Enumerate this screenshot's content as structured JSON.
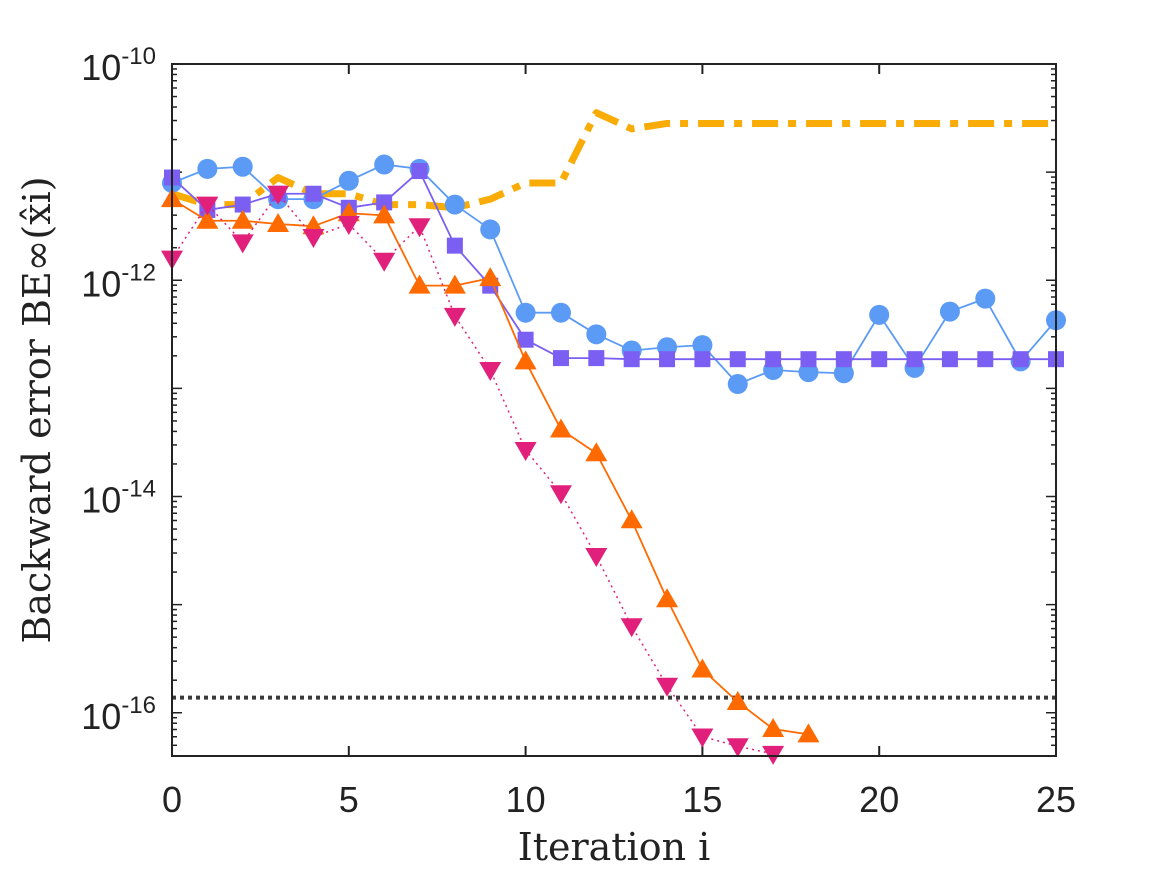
{
  "chart_data": {
    "type": "line",
    "title": "",
    "xlabel": "Iteration i",
    "ylabel": "Backward error BE∞(x̂i)",
    "xlim": [
      0,
      25
    ],
    "ylim_log10": [
      -16.4,
      -10
    ],
    "yscale": "log",
    "x_ticks": [
      "0",
      "5",
      "10",
      "15",
      "20",
      "25"
    ],
    "y_ticks": [
      {
        "base": "10",
        "exp": "-10"
      },
      {
        "base": "10",
        "exp": "-12"
      },
      {
        "base": "10",
        "exp": "-14"
      },
      {
        "base": "10",
        "exp": "-16"
      }
    ],
    "reference_line": {
      "log10": -15.86,
      "style": "dotted",
      "color": "#3a3a3a"
    },
    "series": [
      {
        "name": "dashed-yellow",
        "color": "#f9ac06",
        "marker": "none",
        "line": "dashdot",
        "x": [
          0,
          1,
          2,
          3,
          4,
          5,
          6,
          7,
          8,
          9,
          10,
          11,
          12,
          13,
          14,
          15,
          16,
          17,
          18,
          19,
          20,
          21,
          22,
          23,
          24,
          25
        ],
        "log10y": [
          -11.2,
          -11.3,
          -11.3,
          -11.05,
          -11.2,
          -11.2,
          -11.3,
          -11.3,
          -11.33,
          -11.25,
          -11.1,
          -11.1,
          -10.45,
          -10.6,
          -10.55,
          -10.55,
          -10.55,
          -10.55,
          -10.55,
          -10.55,
          -10.55,
          -10.55,
          -10.55,
          -10.55,
          -10.55,
          -10.55
        ]
      },
      {
        "name": "circles",
        "color": "#5b9bf5",
        "marker": "circle",
        "line": "solid",
        "x": [
          0,
          1,
          2,
          3,
          4,
          5,
          6,
          7,
          8,
          9,
          10,
          11,
          12,
          13,
          14,
          15,
          16,
          17,
          18,
          19,
          20,
          21,
          22,
          23,
          24,
          25
        ],
        "log10y": [
          -11.1,
          -10.97,
          -10.95,
          -11.25,
          -11.25,
          -11.08,
          -10.93,
          -10.97,
          -11.3,
          -11.53,
          -12.3,
          -12.3,
          -12.5,
          -12.65,
          -12.62,
          -12.6,
          -12.96,
          -12.83,
          -12.85,
          -12.86,
          -12.32,
          -12.81,
          -12.29,
          -12.17,
          -12.75,
          -12.37
        ]
      },
      {
        "name": "squares",
        "color": "#7b5ff2",
        "marker": "square",
        "line": "solid",
        "x": [
          0,
          1,
          2,
          3,
          4,
          5,
          6,
          7,
          8,
          9,
          10,
          11,
          12,
          13,
          14,
          15,
          16,
          17,
          18,
          19,
          20,
          21,
          22,
          23,
          24,
          25
        ],
        "log10y": [
          -11.05,
          -11.35,
          -11.3,
          -11.2,
          -11.2,
          -11.33,
          -11.28,
          -10.99,
          -11.68,
          -12.05,
          -12.55,
          -12.72,
          -12.72,
          -12.73,
          -12.73,
          -12.73,
          -12.73,
          -12.73,
          -12.73,
          -12.73,
          -12.73,
          -12.73,
          -12.73,
          -12.73,
          -12.73,
          -12.73
        ]
      },
      {
        "name": "triangles-up",
        "color": "#ff6a00",
        "marker": "triangle-up",
        "line": "solid",
        "x": [
          0,
          1,
          2,
          3,
          4,
          5,
          6,
          7,
          8,
          9,
          10,
          11,
          12,
          13,
          14,
          15,
          16,
          17,
          18
        ],
        "log10y": [
          -11.25,
          -11.45,
          -11.45,
          -11.48,
          -11.5,
          -11.38,
          -11.4,
          -12.05,
          -12.05,
          -11.98,
          -12.75,
          -13.38,
          -13.6,
          -14.22,
          -14.95,
          -15.6,
          -15.9,
          -16.15,
          -16.2
        ]
      },
      {
        "name": "triangles-down",
        "color": "#e0207a",
        "marker": "triangle-down",
        "line": "dotted",
        "x": [
          0,
          1,
          2,
          3,
          4,
          5,
          6,
          7,
          8,
          9,
          10,
          11,
          12,
          13,
          14,
          15,
          16,
          17
        ],
        "log10y": [
          -11.8,
          -11.3,
          -11.65,
          -11.2,
          -11.6,
          -11.48,
          -11.82,
          -11.5,
          -12.33,
          -12.83,
          -13.57,
          -13.97,
          -14.55,
          -15.2,
          -15.75,
          -16.22,
          -16.31,
          -16.38
        ]
      }
    ]
  }
}
